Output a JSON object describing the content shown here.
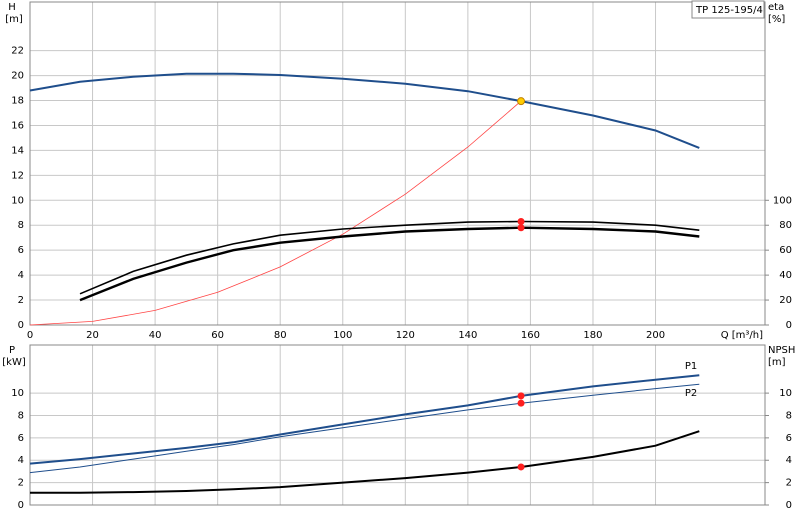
{
  "chart_data": [
    {
      "type": "line",
      "title": "TP 125-195/4",
      "ylabel": "H",
      "yunit": "[m]",
      "y2label": "eta",
      "y2unit": "[%]",
      "xlabel": "Q [m³/h]",
      "xlim": [
        0,
        235
      ],
      "xticks": [
        0,
        20,
        40,
        60,
        80,
        100,
        120,
        140,
        160,
        180,
        200
      ],
      "ylim": [
        0,
        25.9
      ],
      "yticks": [
        0,
        2,
        4,
        6,
        8,
        10,
        12,
        14,
        16,
        18,
        20,
        22
      ],
      "y2lim": [
        0,
        259
      ],
      "y2ticks": [
        0,
        20,
        40,
        60,
        80,
        100
      ],
      "grid": true,
      "show_xtick_labels": true,
      "series": [
        {
          "color": "#1f4e8c",
          "width": 2,
          "x": [
            0,
            16,
            33,
            50,
            65,
            80,
            100,
            120,
            140,
            157,
            180,
            200,
            214
          ],
          "values": [
            18.8,
            19.5,
            19.9,
            20.15,
            20.15,
            20.05,
            19.75,
            19.35,
            18.75,
            17.95,
            16.8,
            15.6,
            14.2
          ]
        },
        {
          "color": "#ff4444",
          "width": 0.8,
          "x": [
            0,
            20,
            40,
            60,
            80,
            100,
            120,
            140,
            157
          ],
          "values": [
            0,
            0.29,
            1.17,
            2.62,
            4.66,
            7.28,
            10.49,
            14.27,
            17.95
          ]
        },
        {
          "color": "#000000",
          "width": 1.6,
          "axis": "y2",
          "x": [
            16,
            33,
            50,
            65,
            80,
            100,
            120,
            140,
            157,
            180,
            200,
            214
          ],
          "values": [
            25,
            43,
            56,
            65,
            72,
            77,
            80,
            82.5,
            83,
            82.5,
            80,
            76
          ]
        },
        {
          "color": "#000000",
          "width": 2.4,
          "axis": "y2",
          "x": [
            16,
            33,
            50,
            65,
            80,
            100,
            120,
            140,
            157,
            180,
            200,
            214
          ],
          "values": [
            20,
            37,
            50,
            60,
            66,
            71,
            75,
            77,
            78,
            77,
            75,
            71
          ]
        }
      ],
      "markers": [
        {
          "x": 157,
          "y": 17.95,
          "color": "#ffcc00"
        },
        {
          "x": 157,
          "y": 83,
          "color": "#ff2020",
          "axis": "y2"
        },
        {
          "x": 157,
          "y": 78,
          "color": "#ff2020",
          "axis": "y2"
        }
      ]
    },
    {
      "type": "line",
      "ylabel": "P",
      "yunit": "[kW]",
      "y2label": "NPSH",
      "y2unit": "[m]",
      "xlim": [
        0,
        235
      ],
      "xticks": [
        0,
        20,
        40,
        60,
        80,
        100,
        120,
        140,
        160,
        180,
        200
      ],
      "ylim": [
        0,
        14.3
      ],
      "yticks": [
        0,
        2,
        4,
        6,
        8,
        10
      ],
      "y2lim": [
        0,
        14.3
      ],
      "y2ticks": [
        0,
        2,
        4,
        6,
        8,
        10
      ],
      "grid": true,
      "show_xtick_labels": false,
      "series": [
        {
          "name": "P1",
          "color": "#1f4e8c",
          "width": 2,
          "x": [
            0,
            16,
            33,
            50,
            65,
            80,
            100,
            120,
            140,
            157,
            180,
            200,
            214
          ],
          "values": [
            3.7,
            4.1,
            4.6,
            5.1,
            5.6,
            6.3,
            7.2,
            8.1,
            8.9,
            9.75,
            10.6,
            11.2,
            11.6
          ]
        },
        {
          "name": "P2",
          "color": "#1f4e8c",
          "width": 1,
          "x": [
            0,
            16,
            33,
            50,
            65,
            80,
            100,
            120,
            140,
            157,
            180,
            200,
            214
          ],
          "values": [
            2.9,
            3.4,
            4.1,
            4.8,
            5.4,
            6.1,
            6.9,
            7.7,
            8.5,
            9.1,
            9.8,
            10.4,
            10.8
          ]
        },
        {
          "color": "#000000",
          "width": 2,
          "axis": "y2",
          "x": [
            0,
            16,
            33,
            50,
            65,
            80,
            100,
            120,
            140,
            157,
            180,
            200,
            214
          ],
          "values": [
            1.1,
            1.1,
            1.15,
            1.25,
            1.4,
            1.6,
            2.0,
            2.4,
            2.9,
            3.4,
            4.3,
            5.3,
            6.6
          ]
        }
      ],
      "markers": [
        {
          "x": 157,
          "y": 9.75,
          "color": "#ff2020"
        },
        {
          "x": 157,
          "y": 9.1,
          "color": "#ff2020"
        },
        {
          "x": 157,
          "y": 3.4,
          "color": "#ff2020",
          "axis": "y2"
        }
      ]
    }
  ]
}
